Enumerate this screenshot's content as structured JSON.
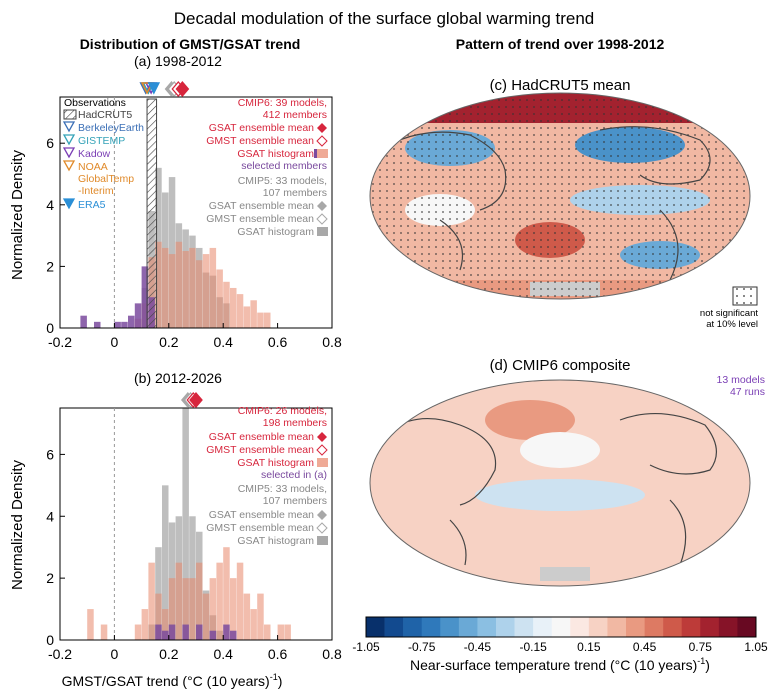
{
  "figure": {
    "title": "Decadal modulation of the surface global warming trend",
    "left_header": "Distribution of GMST/GSAT trend",
    "right_header": "Pattern of trend over 1998-2012"
  },
  "colors": {
    "cmip6": "#e8866a",
    "cmip5": "#a8a8a8",
    "selected": "#7a4a9e",
    "gsat_mean": "#d7263d",
    "gmst_mean": "#d7263d",
    "hadcrut": "#444444",
    "berkeley": "#3b6fb6",
    "gistemp": "#35a3b8",
    "kadow": "#7b3fb5",
    "noaa": "#e08a2a",
    "era5": "#2b8fd6"
  },
  "chart_data": [
    {
      "type": "bar",
      "panel": "(a) 1998-2012",
      "xlabel": "",
      "ylabel": "Normalized Density",
      "xlim": [
        -0.2,
        0.8
      ],
      "ylim": [
        0,
        7.5
      ],
      "x_ticks": [
        "-0.2",
        "0",
        "0.2",
        "0.4",
        "0.6",
        "0.8"
      ],
      "y_ticks": [
        "0",
        "2",
        "4",
        "6"
      ],
      "bin_width": 0.025,
      "series": [
        {
          "name": "CMIP5 GSAT histogram",
          "bins": [
            [
              0.1,
              1.3
            ],
            [
              0.125,
              3.8
            ],
            [
              0.15,
              5.2
            ],
            [
              0.175,
              4.4
            ],
            [
              0.2,
              4.9
            ],
            [
              0.225,
              3.4
            ],
            [
              0.25,
              3.2
            ],
            [
              0.275,
              3.0
            ],
            [
              0.3,
              2.6
            ],
            [
              0.325,
              1.8
            ],
            [
              0.35,
              1.7
            ],
            [
              0.375,
              1.0
            ],
            [
              0.4,
              0.8
            ]
          ]
        },
        {
          "name": "CMIP6 GSAT histogram",
          "bins": [
            [
              0.075,
              0.3
            ],
            [
              0.1,
              0.8
            ],
            [
              0.125,
              2.3
            ],
            [
              0.15,
              2.8
            ],
            [
              0.175,
              2.6
            ],
            [
              0.2,
              2.4
            ],
            [
              0.225,
              2.8
            ],
            [
              0.25,
              2.5
            ],
            [
              0.275,
              2.6
            ],
            [
              0.3,
              2.2
            ],
            [
              0.325,
              2.4
            ],
            [
              0.35,
              2.6
            ],
            [
              0.375,
              1.9
            ],
            [
              0.4,
              1.5
            ],
            [
              0.425,
              1.3
            ],
            [
              0.45,
              1.1
            ],
            [
              0.475,
              0.7
            ],
            [
              0.5,
              0.9
            ],
            [
              0.525,
              0.5
            ],
            [
              0.55,
              0.5
            ]
          ]
        },
        {
          "name": "selected members",
          "bins": [
            [
              -0.125,
              0.4
            ],
            [
              -0.075,
              0.2
            ],
            [
              0.0,
              0.2
            ],
            [
              0.025,
              0.2
            ],
            [
              0.05,
              0.4
            ],
            [
              0.075,
              0.8
            ],
            [
              0.1,
              2.0
            ],
            [
              0.125,
              1.0
            ]
          ]
        }
      ],
      "observations_band": [
        0.12,
        0.155
      ],
      "markers_top": [
        {
          "name": "BerkeleyEarth",
          "x": 0.115,
          "shape": "tri-down-open",
          "color": "#3b6fb6"
        },
        {
          "name": "GISTEMP",
          "x": 0.125,
          "shape": "tri-down-open",
          "color": "#35a3b8"
        },
        {
          "name": "Kadow",
          "x": 0.135,
          "shape": "tri-down-open",
          "color": "#7b3fb5"
        },
        {
          "name": "NOAA GlobalTemp-Interim",
          "x": 0.12,
          "shape": "tri-down-open",
          "color": "#e08a2a"
        },
        {
          "name": "ERA5",
          "x": 0.145,
          "shape": "tri-down-filled",
          "color": "#2b8fd6"
        },
        {
          "name": "CMIP5 GSAT ensemble mean",
          "x": 0.21,
          "shape": "diamond-filled",
          "color": "#a8a8a8"
        },
        {
          "name": "CMIP5 GMST ensemble mean",
          "x": 0.22,
          "shape": "diamond-open",
          "color": "#a8a8a8"
        },
        {
          "name": "CMIP6 GMST ensemble mean",
          "x": 0.235,
          "shape": "diamond-open",
          "color": "#d7263d"
        },
        {
          "name": "CMIP6 GSAT ensemble mean",
          "x": 0.25,
          "shape": "diamond-filled",
          "color": "#d7263d"
        }
      ],
      "legend_obs": {
        "heading": "Observations",
        "items": [
          "HadCRUT5",
          "BerkeleyEarth",
          "GISTEMP",
          "Kadow",
          "NOAA",
          "GlobalTemp",
          "-Interim",
          "ERA5"
        ]
      },
      "legend_models": [
        "CMIP6: 39 models,",
        "412 members",
        "GSAT ensemble mean",
        "GMST ensemble mean",
        "GSAT histogram",
        "selected members",
        "CMIP5: 33 models,",
        "107 members",
        "GSAT ensemble mean",
        "GMST ensemble mean",
        "GSAT histogram"
      ]
    },
    {
      "type": "bar",
      "panel": "(b) 2012-2026",
      "xlabel": "GMST/GSAT trend (°C (10 years)",
      "xlabel_sup": "-1",
      "xlabel_end": ")",
      "ylabel": "Normalized Density",
      "xlim": [
        -0.2,
        0.8
      ],
      "ylim": [
        0,
        7.5
      ],
      "x_ticks": [
        "-0.2",
        "0",
        "0.2",
        "0.4",
        "0.6",
        "0.8"
      ],
      "y_ticks": [
        "0",
        "2",
        "4",
        "6"
      ],
      "bin_width": 0.025,
      "series": [
        {
          "name": "CMIP5 GSAT histogram",
          "bins": [
            [
              0.125,
              0.5
            ],
            [
              0.15,
              3.0
            ],
            [
              0.175,
              5.0
            ],
            [
              0.2,
              3.8
            ],
            [
              0.225,
              4.0
            ],
            [
              0.25,
              7.5
            ],
            [
              0.275,
              4.0
            ],
            [
              0.3,
              3.5
            ],
            [
              0.325,
              1.6
            ],
            [
              0.35,
              0.8
            ],
            [
              0.375,
              0.3
            ]
          ]
        },
        {
          "name": "CMIP6 GSAT histogram",
          "bins": [
            [
              -0.1,
              1.0
            ],
            [
              -0.05,
              0.5
            ],
            [
              0.075,
              0.5
            ],
            [
              0.1,
              1.0
            ],
            [
              0.125,
              2.5
            ],
            [
              0.15,
              1.5
            ],
            [
              0.175,
              1.0
            ],
            [
              0.2,
              2.0
            ],
            [
              0.225,
              2.5
            ],
            [
              0.25,
              2.0
            ],
            [
              0.275,
              2.0
            ],
            [
              0.3,
              2.5
            ],
            [
              0.325,
              1.5
            ],
            [
              0.35,
              2.0
            ],
            [
              0.375,
              2.5
            ],
            [
              0.4,
              3.0
            ],
            [
              0.425,
              2.0
            ],
            [
              0.45,
              2.5
            ],
            [
              0.475,
              1.5
            ],
            [
              0.5,
              1.0
            ],
            [
              0.525,
              1.5
            ],
            [
              0.55,
              0.5
            ],
            [
              0.6,
              0.5
            ],
            [
              0.625,
              0.5
            ]
          ]
        },
        {
          "name": "selected in (a)",
          "bins": [
            [
              0.15,
              0.5
            ],
            [
              0.175,
              0.3
            ],
            [
              0.2,
              0.5
            ],
            [
              0.25,
              0.5
            ],
            [
              0.3,
              0.5
            ],
            [
              0.35,
              0.3
            ],
            [
              0.4,
              0.5
            ],
            [
              0.425,
              0.3
            ]
          ]
        }
      ],
      "markers_top": [
        {
          "name": "CMIP5 GSAT ensemble mean",
          "x": 0.27,
          "shape": "diamond-filled",
          "color": "#a8a8a8"
        },
        {
          "name": "CMIP5 GMST ensemble mean",
          "x": 0.28,
          "shape": "diamond-open",
          "color": "#a8a8a8"
        },
        {
          "name": "CMIP6 GMST ensemble mean",
          "x": 0.29,
          "shape": "diamond-open",
          "color": "#d7263d"
        },
        {
          "name": "CMIP6 GSAT ensemble mean",
          "x": 0.3,
          "shape": "diamond-filled",
          "color": "#d7263d"
        }
      ],
      "legend_models": [
        "CMIP6: 26 models,",
        "198 members",
        "GSAT ensemble mean",
        "GMST ensemble mean",
        "GSAT histogram",
        "selected in (a)",
        "CMIP5: 33 models,",
        "107 members",
        "GSAT ensemble mean",
        "GMST ensemble mean",
        "GSAT histogram"
      ]
    },
    {
      "type": "heatmap",
      "panel": "(c) HadCRUT5 mean",
      "stipple_note": [
        "not significant",
        "at 10% level"
      ]
    },
    {
      "type": "heatmap",
      "panel": "(d) CMIP6 composite",
      "note": [
        "13 models",
        "47 runs"
      ]
    },
    {
      "type": "colorbar",
      "levels": [
        -1.05,
        -0.95,
        -0.85,
        -0.75,
        -0.65,
        -0.55,
        -0.45,
        -0.35,
        -0.25,
        -0.15,
        -0.05,
        0.05,
        0.15,
        0.25,
        0.35,
        0.45,
        0.55,
        0.65,
        0.75,
        0.85,
        0.95,
        1.05
      ],
      "tick_labels": [
        "-1.05",
        "-0.75",
        "-0.45",
        "-0.15",
        "0.15",
        "0.45",
        "0.75",
        "1.05"
      ],
      "label": "Near-surface temperature trend (°C (10 years)",
      "label_sup": "-1",
      "label_end": ")",
      "colors": [
        "#08306b",
        "#124a8f",
        "#1f63a8",
        "#2f79bb",
        "#4a92c9",
        "#6aa9d6",
        "#8bbfe2",
        "#aed2eb",
        "#cde2f1",
        "#e8f1f8",
        "#f7f7f7",
        "#fbe8e2",
        "#f7d2c4",
        "#f1b8a3",
        "#e99a81",
        "#dd7a63",
        "#cf5a4a",
        "#bd3b39",
        "#a3222f",
        "#861328",
        "#680922"
      ]
    }
  ]
}
